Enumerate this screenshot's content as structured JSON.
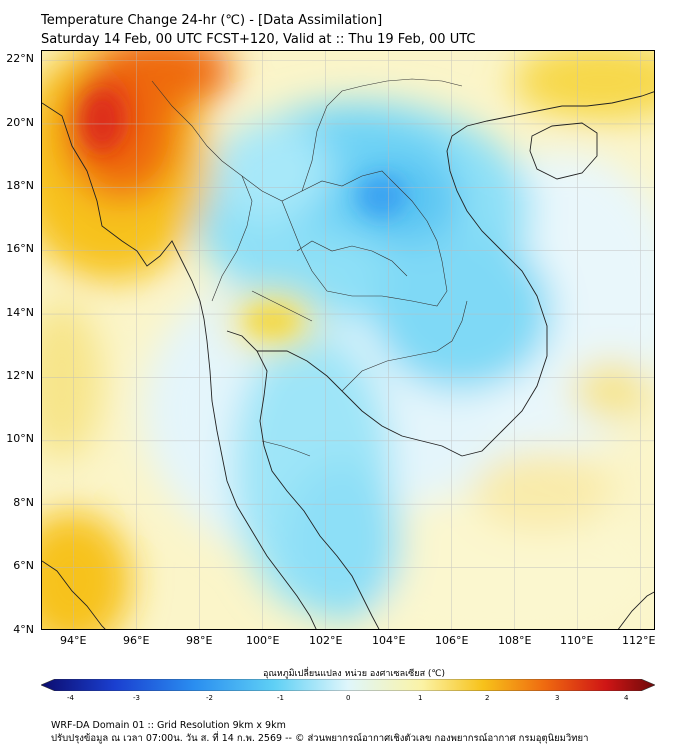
{
  "title": {
    "line1": "Temperature Change 24-hr (℃) - [Data Assimilation]",
    "line2": "Saturday 14 Feb, 00 UTC FCST+120, Valid at :: Thu 19 Feb, 00 UTC"
  },
  "map": {
    "lat_labels": [
      "22°N",
      "20°N",
      "18°N",
      "16°N",
      "14°N",
      "12°N",
      "10°N",
      "8°N",
      "6°N",
      "4°N"
    ],
    "lon_labels": [
      "94°E",
      "96°E",
      "98°E",
      "100°E",
      "102°E",
      "104°E",
      "106°E",
      "108°E",
      "110°E",
      "112°E"
    ],
    "extent": {
      "lon_min": 93,
      "lon_max": 112.5,
      "lat_min": 4,
      "lat_max": 22.3
    },
    "field": "temperature change 24-hr",
    "warm_regions": [
      "Myanmar north",
      "Central Thailand",
      "China south",
      "Andaman Sea",
      "South China Sea east"
    ],
    "cool_regions": [
      "Northeast Thailand",
      "Laos",
      "Cambodia",
      "Vietnam central",
      "Gulf of Thailand",
      "Malay Peninsula"
    ]
  },
  "colorbar": {
    "title": "อุณหภูมิเปลี่ยนแปลง หน่วย องศาเซลเซียส (℃)",
    "ticks": [
      "-4",
      "-3",
      "-2",
      "-1",
      "0",
      "1",
      "2",
      "3",
      "4"
    ],
    "min": -4,
    "max": 4,
    "colors": [
      "#0c0c6e",
      "#1a3fd0",
      "#2a8ef0",
      "#5fd0f5",
      "#dff6fb",
      "#fbf3a6",
      "#f7c21a",
      "#ef6a10",
      "#cf1515",
      "#6e0a0a"
    ]
  },
  "footer": {
    "line1": "WRF-DA Domain 01 :: Grid Resolution 9km x 9km",
    "line2": "ปรับปรุงข้อมูล ณ เวลา 07:00น. วัน ส. ที่ 14 ก.พ. 2569 -- © ส่วนพยากรณ์อากาศเชิงตัวเลข กองพยากรณ์อากาศ กรมอุตุนิยมวิทยา"
  }
}
